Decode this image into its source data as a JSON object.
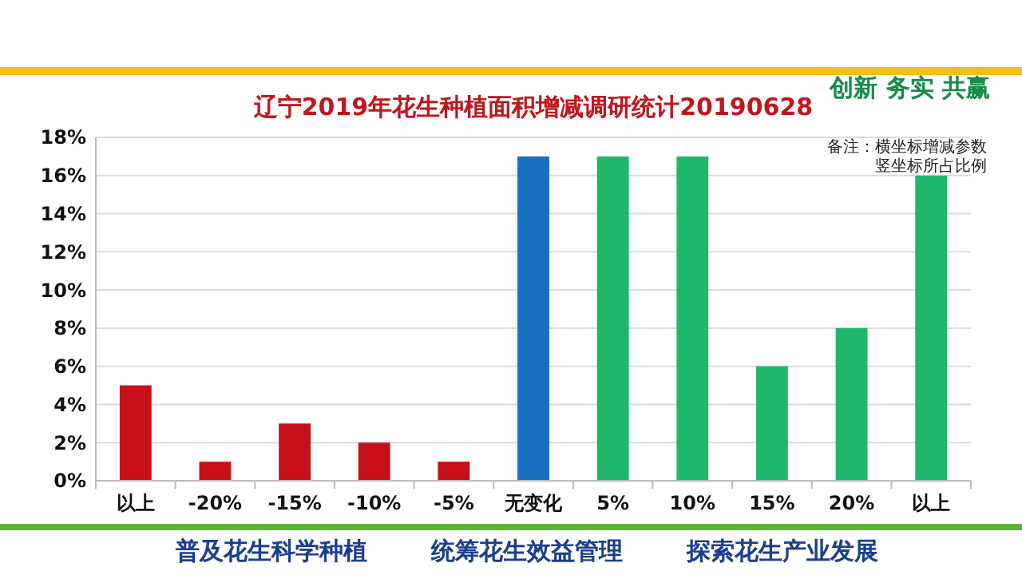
{
  "chart_data": {
    "type": "bar",
    "title": "辽宁2019年花生种植面积增减调研统计20190628",
    "categories": [
      "以上",
      "-20%",
      "-15%",
      "-10%",
      "-5%",
      "无变化",
      "5%",
      "10%",
      "15%",
      "20%",
      "以上"
    ],
    "values": [
      5,
      1,
      3,
      2,
      1,
      17,
      17,
      17,
      6,
      8,
      16
    ],
    "colors": [
      "#c8101a",
      "#c8101a",
      "#c8101a",
      "#c8101a",
      "#c8101a",
      "#1a6fc0",
      "#1fb86a",
      "#1fb86a",
      "#1fb86a",
      "#1fb86a",
      "#1fb86a"
    ],
    "ylim": [
      0,
      18
    ],
    "yticks": [
      {
        "value": 0,
        "label": "0%"
      },
      {
        "value": 2,
        "label": "2%"
      },
      {
        "value": 4,
        "label": "4%"
      },
      {
        "value": 6,
        "label": "6%"
      },
      {
        "value": 8,
        "label": "8%"
      },
      {
        "value": 10,
        "label": "10%"
      },
      {
        "value": 12,
        "label": "12%"
      },
      {
        "value": 14,
        "label": "14%"
      },
      {
        "value": 16,
        "label": "16%"
      },
      {
        "value": 18,
        "label": "18%"
      }
    ],
    "grid": "y",
    "annotations": [
      "创新 务实 共赢",
      "备注：横坐标增减参数",
      "竖坐标所占比例",
      "普及花生科学种植",
      "统筹花生效益管理",
      "探索花生产业发展"
    ]
  }
}
